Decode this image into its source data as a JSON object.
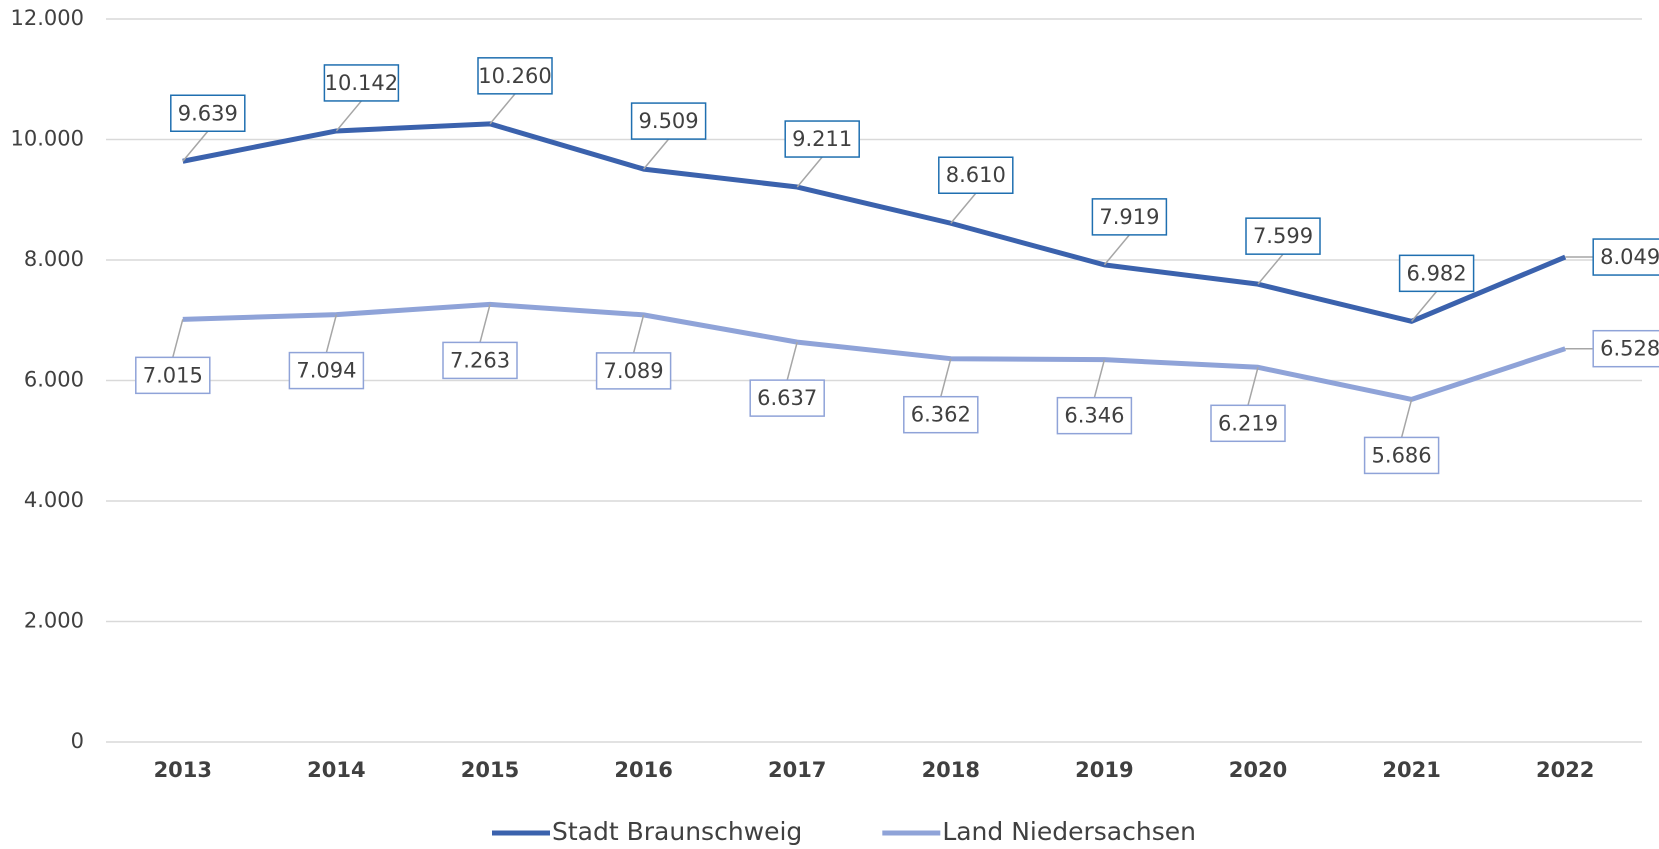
{
  "chart_data": {
    "type": "line",
    "categories": [
      "2013",
      "2014",
      "2015",
      "2016",
      "2017",
      "2018",
      "2019",
      "2020",
      "2021",
      "2022"
    ],
    "series": [
      {
        "name": "Stadt Braunschweig",
        "color": "#3b62ad",
        "label_border": "#1f6fb0",
        "values": [
          9639,
          10142,
          10260,
          9509,
          9211,
          8610,
          7919,
          7599,
          6982,
          8049
        ],
        "value_labels": [
          "9.639",
          "10.142",
          "10.260",
          "9.509",
          "9.211",
          "8.610",
          "7.919",
          "7.599",
          "6.982",
          "8.049"
        ]
      },
      {
        "name": "Land Niedersachsen",
        "color": "#8fa3d8",
        "label_border": "#8fa3d8",
        "values": [
          7015,
          7094,
          7263,
          7089,
          6637,
          6362,
          6346,
          6219,
          5686,
          6528
        ],
        "value_labels": [
          "7.015",
          "7.094",
          "7.263",
          "7.089",
          "6.637",
          "6.362",
          "6.346",
          "6.219",
          "5.686",
          "6.528"
        ]
      }
    ],
    "ylim": [
      0,
      12000
    ],
    "yticks": [
      0,
      {
        "value": 2000,
        "label": "2.000"
      },
      {
        "value": 4000,
        "label": "4.000"
      },
      {
        "value": 6000,
        "label": "6.000"
      },
      {
        "value": 8000,
        "label": "8.000"
      },
      {
        "value": 10000,
        "label": "10.000"
      },
      {
        "value": 12000,
        "label": "12.000"
      }
    ],
    "grid": true,
    "legend": "bottom"
  }
}
